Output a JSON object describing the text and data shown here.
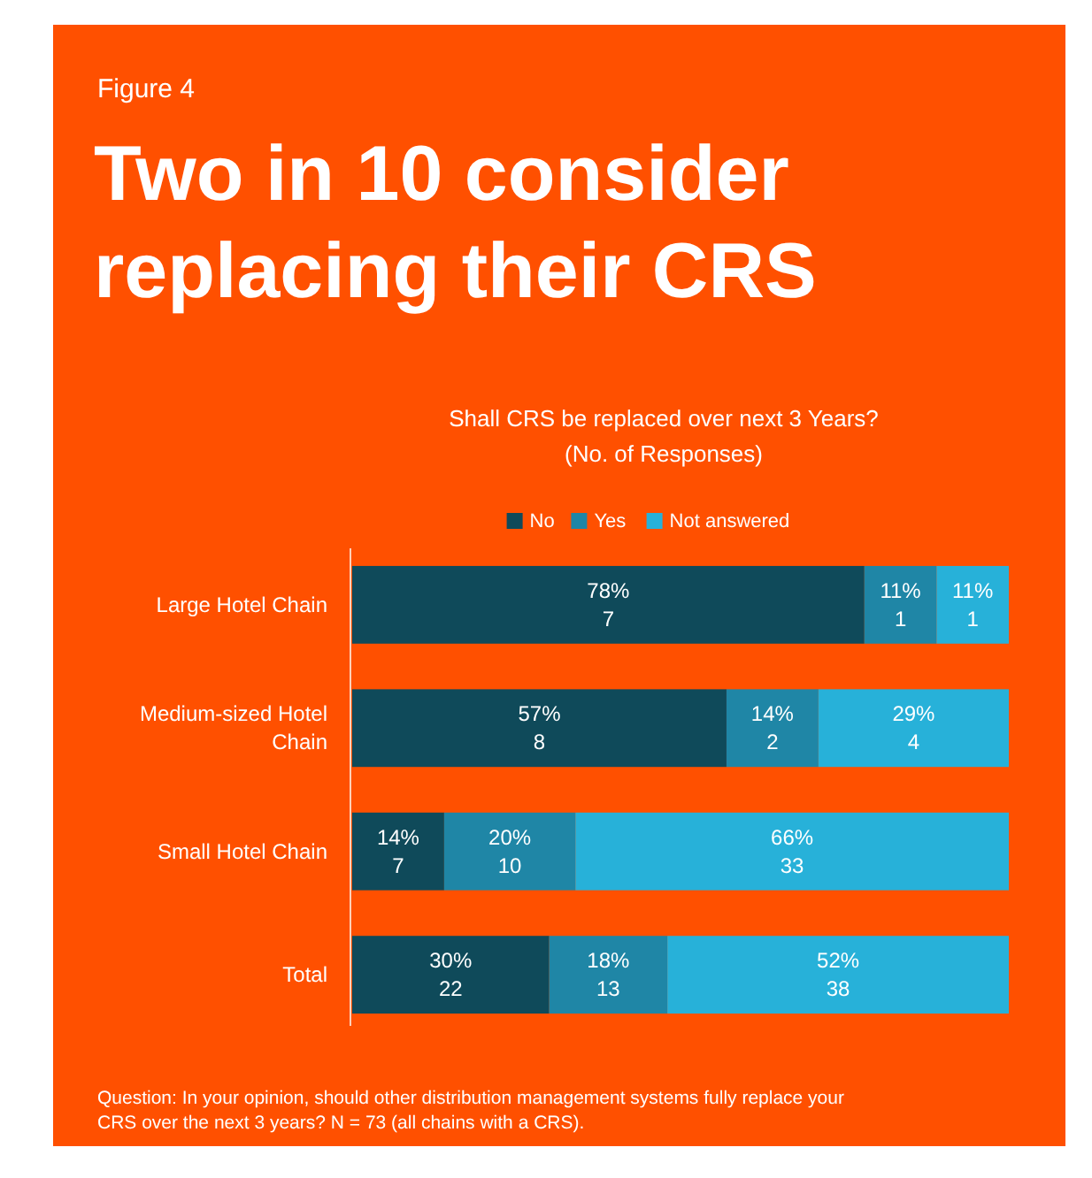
{
  "chart_data": {
    "type": "bar",
    "orientation": "horizontal",
    "stacked": true,
    "title": "Two in 10 consider replacing their CRS",
    "subtitle": "Shall CRS be replaced over next 3 Years?\n(No. of Responses)",
    "categories": [
      "Large Hotel Chain",
      "Medium-sized Hotel Chain",
      "Small Hotel Chain",
      "Total"
    ],
    "series": [
      {
        "name": "No",
        "color": "#0f4a5a",
        "values": [
          78,
          57,
          14,
          30
        ],
        "value_labels": [
          "78%\n7",
          "57%\n8",
          "14%\n7",
          "30%\n22"
        ]
      },
      {
        "name": "Yes",
        "color": "#1f86a6",
        "values": [
          11,
          14,
          20,
          18
        ],
        "value_labels": [
          "11%\n1",
          "14%\n2",
          "20%\n10",
          "18%\n13"
        ]
      },
      {
        "name": "Not answered",
        "color": "#27b1d9",
        "values": [
          11,
          29,
          66,
          52
        ],
        "value_labels": [
          "11%\n1",
          "29%\n4",
          "66%\n33",
          "52%\n38"
        ]
      }
    ],
    "legend": "top",
    "annotations": [
      "Figure 4",
      "Question:  In your opinion, should other distribution management systems fully replace your CRS over the next 3 years?  N = 73 (all chains with a CRS)."
    ]
  }
}
